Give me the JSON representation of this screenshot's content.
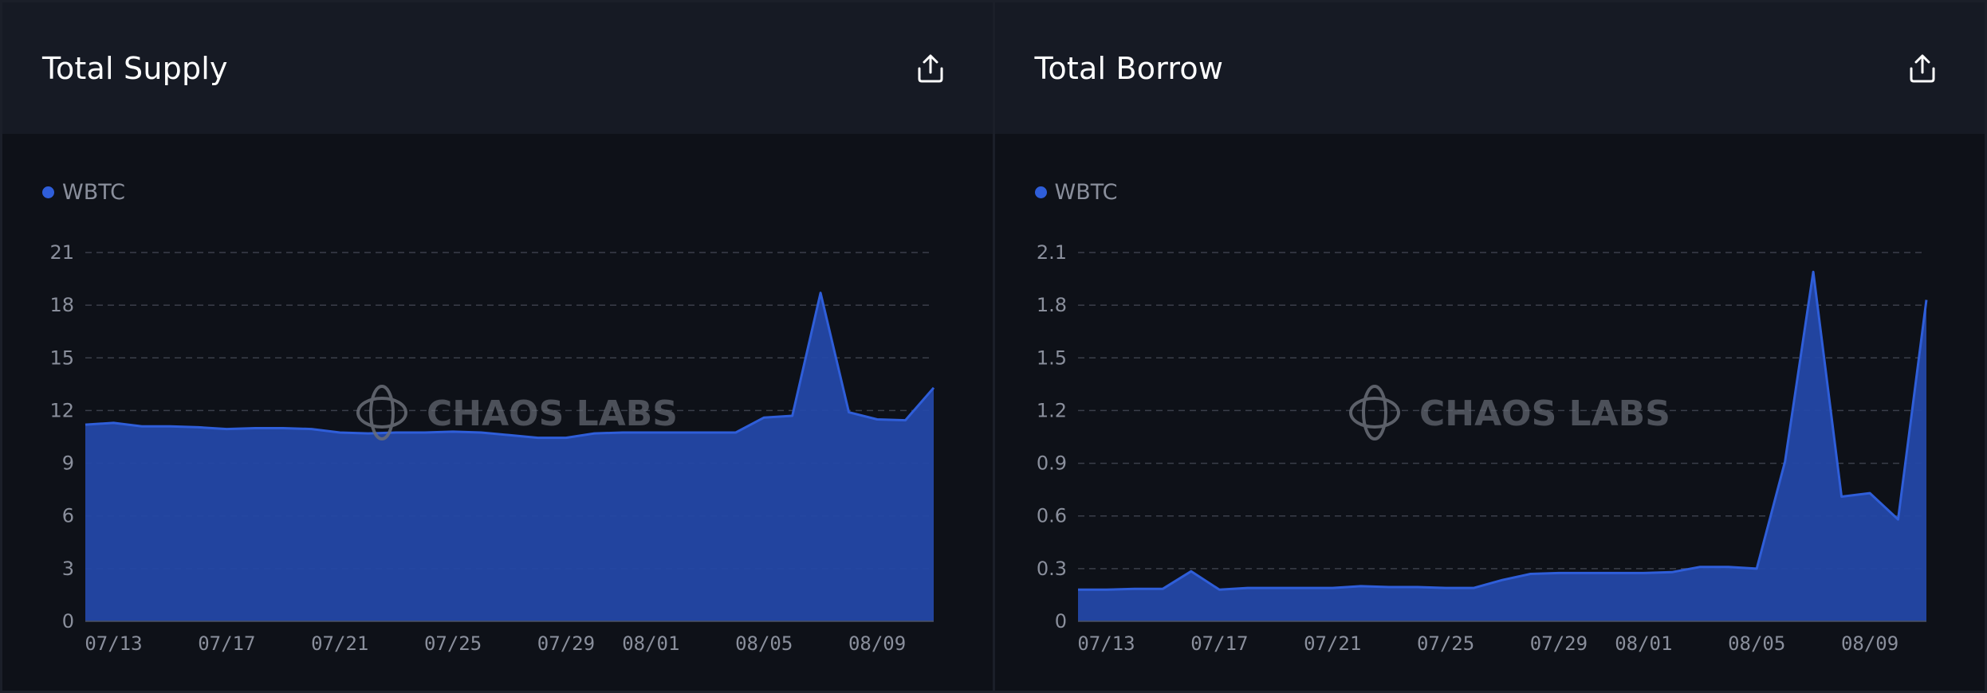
{
  "panels": [
    {
      "title": "Total Supply",
      "export_icon": "export-icon"
    },
    {
      "title": "Total Borrow",
      "export_icon": "export-icon"
    }
  ],
  "watermark": "CHAOS LABS",
  "colors": {
    "series": "#2f5ed9",
    "series_fill": "#2448a6",
    "grid": "#3b3f4a",
    "tick": "#8a8f9c"
  },
  "chart_data": [
    {
      "type": "area",
      "title": "Total Supply",
      "xlabel": "",
      "ylabel": "",
      "ylim": [
        0,
        21
      ],
      "yticks": [
        "0",
        "3",
        "6",
        "9",
        "12",
        "15",
        "18",
        "21"
      ],
      "ytick_values": [
        0,
        3,
        6,
        9,
        12,
        15,
        18,
        21
      ],
      "xticks": [
        {
          "label": "07/13",
          "x": 1
        },
        {
          "label": "07/17",
          "x": 5
        },
        {
          "label": "07/21",
          "x": 9
        },
        {
          "label": "07/25",
          "x": 13
        },
        {
          "label": "07/29",
          "x": 17
        },
        {
          "label": "08/01",
          "x": 20
        },
        {
          "label": "08/05",
          "x": 24
        },
        {
          "label": "08/09",
          "x": 28
        }
      ],
      "x_range": [
        0,
        30
      ],
      "grid": true,
      "legend_position": "top-left",
      "series": [
        {
          "name": "WBTC",
          "values": [
            11.2,
            11.3,
            11.1,
            11.1,
            11.05,
            10.95,
            11.0,
            11.0,
            10.95,
            10.75,
            10.7,
            10.75,
            10.75,
            10.8,
            10.75,
            10.6,
            10.45,
            10.45,
            10.7,
            10.75,
            10.75,
            10.75,
            10.75,
            10.75,
            11.6,
            11.7,
            18.7,
            11.9,
            11.5,
            11.45,
            13.3
          ]
        }
      ]
    },
    {
      "type": "area",
      "title": "Total Borrow",
      "xlabel": "",
      "ylabel": "",
      "ylim": [
        0,
        2.1
      ],
      "yticks": [
        "0",
        "0.3",
        "0.6",
        "0.9",
        "1.2",
        "1.5",
        "1.8",
        "2.1"
      ],
      "ytick_values": [
        0,
        0.3,
        0.6,
        0.9,
        1.2,
        1.5,
        1.8,
        2.1
      ],
      "xticks": [
        {
          "label": "07/13",
          "x": 1
        },
        {
          "label": "07/17",
          "x": 5
        },
        {
          "label": "07/21",
          "x": 9
        },
        {
          "label": "07/25",
          "x": 13
        },
        {
          "label": "07/29",
          "x": 17
        },
        {
          "label": "08/01",
          "x": 20
        },
        {
          "label": "08/05",
          "x": 24
        },
        {
          "label": "08/09",
          "x": 28
        }
      ],
      "x_range": [
        0,
        30
      ],
      "grid": true,
      "legend_position": "top-left",
      "series": [
        {
          "name": "WBTC",
          "values": [
            0.18,
            0.18,
            0.185,
            0.185,
            0.285,
            0.18,
            0.19,
            0.19,
            0.19,
            0.19,
            0.2,
            0.195,
            0.195,
            0.19,
            0.19,
            0.235,
            0.27,
            0.275,
            0.275,
            0.275,
            0.275,
            0.28,
            0.31,
            0.31,
            0.3,
            0.91,
            1.99,
            0.71,
            0.73,
            0.58,
            1.83
          ]
        }
      ]
    }
  ]
}
